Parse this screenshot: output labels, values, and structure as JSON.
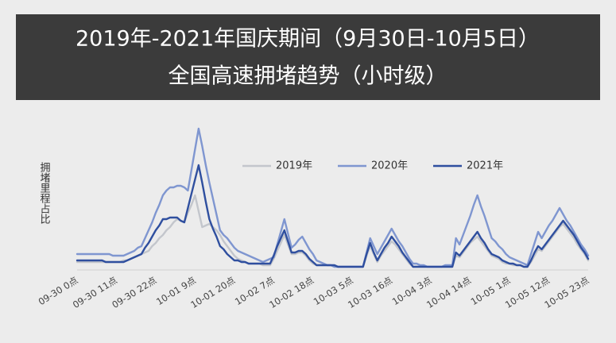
{
  "chart_data": {
    "type": "line",
    "title": "2019年-2021年国庆期间（9月30日-10月5日）",
    "subtitle": "全国高速拥堵趋势（小时级）",
    "y_label": "拥堵里程占比",
    "categories": [
      "09-30 0点",
      null,
      null,
      null,
      null,
      null,
      null,
      null,
      null,
      null,
      null,
      "09-30 11点",
      null,
      null,
      null,
      null,
      null,
      null,
      null,
      null,
      null,
      null,
      "09-30 22点",
      null,
      null,
      null,
      null,
      null,
      null,
      null,
      null,
      null,
      null,
      "10-01 9点",
      null,
      null,
      null,
      null,
      null,
      null,
      null,
      null,
      null,
      null,
      "10-01 20点",
      null,
      null,
      null,
      null,
      null,
      null,
      null,
      null,
      null,
      null,
      "10-02 7点",
      null,
      null,
      null,
      null,
      null,
      null,
      null,
      null,
      null,
      null,
      "10-02 18点",
      null,
      null,
      null,
      null,
      null,
      null,
      null,
      null,
      null,
      null,
      "10-03 5点",
      null,
      null,
      null,
      null,
      null,
      null,
      null,
      null,
      null,
      null,
      "10-03 16点",
      null,
      null,
      null,
      null,
      null,
      null,
      null,
      null,
      null,
      null,
      "10-04 3点",
      null,
      null,
      null,
      null,
      null,
      null,
      null,
      null,
      null,
      null,
      "10-04 14点",
      null,
      null,
      null,
      null,
      null,
      null,
      null,
      null,
      null,
      null,
      "10-05 1点",
      null,
      null,
      null,
      null,
      null,
      null,
      null,
      null,
      null,
      null,
      "10-05 12点",
      null,
      null,
      null,
      null,
      null,
      null,
      null,
      null,
      null,
      null,
      "10-05 23点"
    ],
    "ylim": [
      0,
      100
    ],
    "series": [
      {
        "name": "2019年",
        "color": "#c3c6cc",
        "values": [
          5,
          5,
          5,
          5,
          5,
          5,
          5,
          5,
          5,
          5,
          5,
          5,
          5,
          6,
          6,
          7,
          8,
          9,
          10,
          11,
          12,
          15,
          17,
          20,
          22,
          25,
          27,
          30,
          32,
          31,
          30,
          36,
          41,
          47,
          37,
          27,
          28,
          29,
          27,
          25,
          22,
          18,
          15,
          12,
          9,
          7,
          6,
          5,
          4,
          4,
          4,
          4,
          3,
          3,
          3,
          7,
          12,
          17,
          22,
          16,
          10,
          10,
          11,
          11,
          9,
          6,
          4,
          3,
          3,
          3,
          3,
          3,
          2,
          2,
          2,
          2,
          2,
          2,
          2,
          2,
          2,
          9,
          15,
          10,
          5,
          9,
          12,
          15,
          18,
          16,
          13,
          10,
          7,
          4,
          2,
          2,
          2,
          2,
          2,
          2,
          2,
          2,
          2,
          2,
          2,
          2,
          9,
          8,
          11,
          14,
          17,
          19,
          21,
          18,
          15,
          12,
          9,
          8,
          7,
          5,
          4,
          4,
          3,
          3,
          3,
          2,
          2,
          5,
          9,
          13,
          12,
          15,
          18,
          21,
          24,
          27,
          29,
          26,
          23,
          20,
          16,
          13,
          10,
          6
        ]
      },
      {
        "name": "2020年",
        "color": "#7f96d0",
        "values": [
          10,
          10,
          10,
          10,
          10,
          10,
          10,
          10,
          10,
          10,
          9,
          9,
          9,
          9,
          10,
          11,
          12,
          14,
          15,
          20,
          25,
          30,
          36,
          41,
          47,
          50,
          52,
          52,
          53,
          53,
          52,
          50,
          63,
          76,
          89,
          78,
          66,
          55,
          45,
          35,
          25,
          22,
          20,
          17,
          14,
          12,
          11,
          10,
          9,
          8,
          7,
          6,
          5,
          6,
          7,
          8,
          16,
          24,
          32,
          23,
          14,
          16,
          19,
          21,
          17,
          13,
          10,
          6,
          5,
          4,
          3,
          3,
          2,
          2,
          2,
          2,
          2,
          2,
          2,
          2,
          2,
          11,
          20,
          15,
          10,
          14,
          18,
          22,
          26,
          22,
          18,
          15,
          11,
          7,
          4,
          4,
          3,
          3,
          2,
          2,
          2,
          2,
          2,
          3,
          3,
          3,
          20,
          16,
          22,
          28,
          34,
          41,
          47,
          40,
          34,
          27,
          20,
          18,
          15,
          13,
          10,
          8,
          7,
          6,
          5,
          4,
          3,
          10,
          17,
          24,
          20,
          24,
          28,
          31,
          35,
          39,
          35,
          31,
          28,
          24,
          20,
          16,
          13,
          9
        ]
      },
      {
        "name": "2021年",
        "color": "#2f4f9f",
        "values": [
          6,
          6,
          6,
          6,
          6,
          6,
          6,
          6,
          5,
          5,
          5,
          5,
          5,
          5,
          6,
          7,
          8,
          9,
          10,
          14,
          17,
          21,
          25,
          28,
          32,
          32,
          33,
          33,
          33,
          31,
          30,
          39,
          48,
          57,
          66,
          55,
          43,
          32,
          26,
          21,
          15,
          13,
          10,
          8,
          6,
          6,
          5,
          5,
          4,
          4,
          4,
          4,
          4,
          4,
          4,
          9,
          15,
          20,
          25,
          18,
          11,
          11,
          12,
          12,
          10,
          7,
          5,
          3,
          3,
          3,
          3,
          3,
          3,
          2,
          2,
          2,
          2,
          2,
          2,
          2,
          2,
          10,
          17,
          11,
          6,
          10,
          14,
          17,
          21,
          18,
          15,
          11,
          8,
          5,
          2,
          2,
          2,
          2,
          2,
          2,
          2,
          2,
          2,
          2,
          2,
          2,
          11,
          9,
          12,
          15,
          18,
          21,
          24,
          20,
          17,
          13,
          10,
          9,
          8,
          6,
          5,
          4,
          4,
          3,
          3,
          2,
          2,
          6,
          11,
          15,
          13,
          16,
          19,
          22,
          25,
          28,
          31,
          28,
          25,
          22,
          18,
          14,
          11,
          7
        ]
      }
    ]
  }
}
